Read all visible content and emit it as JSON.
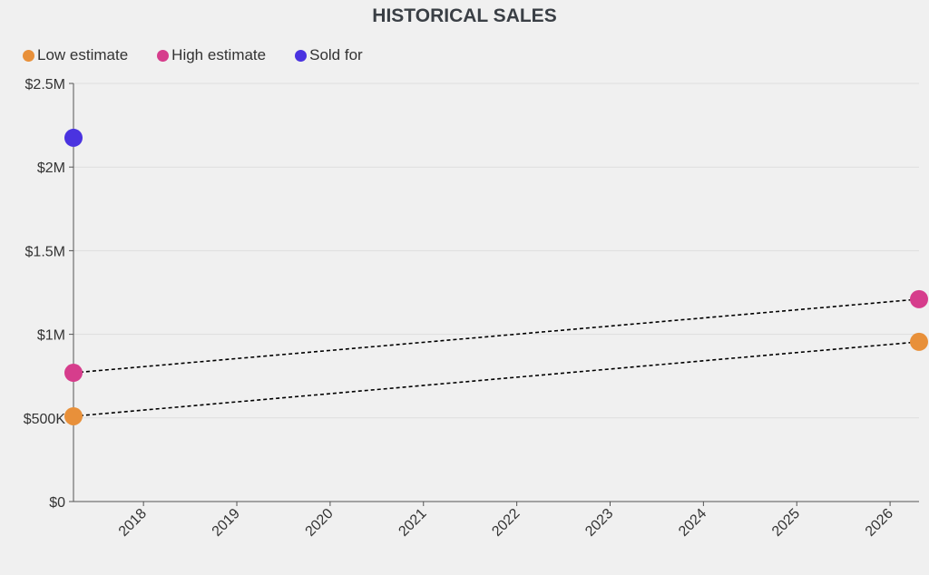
{
  "chart_data": {
    "type": "scatter",
    "title": "HISTORICAL SALES",
    "xlabel": "",
    "ylabel": "",
    "xlim": [
      2017.25,
      2026.31
    ],
    "ylim": [
      0,
      2500000
    ],
    "grid": true,
    "legend_placement": "top-left",
    "x_ticks": [
      "2018",
      "2019",
      "2020",
      "2021",
      "2022",
      "2023",
      "2024",
      "2025",
      "2026"
    ],
    "y_ticks": [
      {
        "value": 0,
        "label": "$0"
      },
      {
        "value": 500000,
        "label": "$500K"
      },
      {
        "value": 1000000,
        "label": "$1M"
      },
      {
        "value": 1500000,
        "label": "$1.5M"
      },
      {
        "value": 2000000,
        "label": "$2M"
      },
      {
        "value": 2500000,
        "label": "$2.5M"
      }
    ],
    "series": [
      {
        "name": "Low estimate",
        "color": "#e8903a",
        "points": [
          {
            "x": 2017.25,
            "y": 510000
          },
          {
            "x": 2026.31,
            "y": 955000
          }
        ],
        "trendline": true
      },
      {
        "name": "High estimate",
        "color": "#d63d8c",
        "points": [
          {
            "x": 2017.25,
            "y": 770000
          },
          {
            "x": 2026.31,
            "y": 1210000
          }
        ],
        "trendline": true
      },
      {
        "name": "Sold for",
        "color": "#4a33e0",
        "points": [
          {
            "x": 2017.25,
            "y": 2175000
          }
        ],
        "trendline": false
      }
    ]
  }
}
